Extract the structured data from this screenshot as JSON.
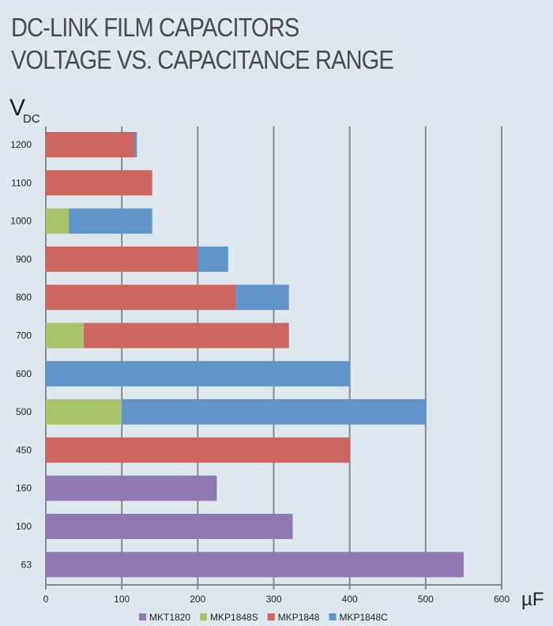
{
  "chart_data": {
    "type": "bar",
    "orientation": "horizontal",
    "stacked": true,
    "title": "DC-LINK FILM CAPACITORS",
    "subtitle": "VOLTAGE VS. CAPACITANCE RANGE",
    "ylabel_main": "V",
    "ylabel_sub": "DC",
    "xlabel": "µF",
    "xlim": [
      0,
      600
    ],
    "xticks": [
      0,
      100,
      200,
      300,
      400,
      500,
      600
    ],
    "grid": true,
    "legend": "bottom",
    "categories": [
      "1200",
      "1100",
      "1000",
      "900",
      "800",
      "700",
      "600",
      "500",
      "450",
      "160",
      "100",
      "63"
    ],
    "series": [
      {
        "name": "MKT1820",
        "color": "#9079b1",
        "values": [
          0,
          0,
          0,
          0,
          0,
          0,
          0,
          0,
          0,
          225,
          325,
          550
        ]
      },
      {
        "name": "MKP1848S",
        "color": "#a7c46b",
        "values": [
          0,
          0,
          30,
          0,
          0,
          50,
          0,
          100,
          0,
          0,
          0,
          0
        ]
      },
      {
        "name": "MKP1848",
        "color": "#cd6660",
        "values": [
          117,
          140,
          0,
          200,
          250,
          270,
          0,
          0,
          400,
          0,
          0,
          0
        ]
      },
      {
        "name": "MKP1848C",
        "color": "#6194c9",
        "values": [
          3,
          0,
          110,
          40,
          70,
          0,
          400,
          400,
          0,
          0,
          0,
          0
        ]
      }
    ]
  }
}
